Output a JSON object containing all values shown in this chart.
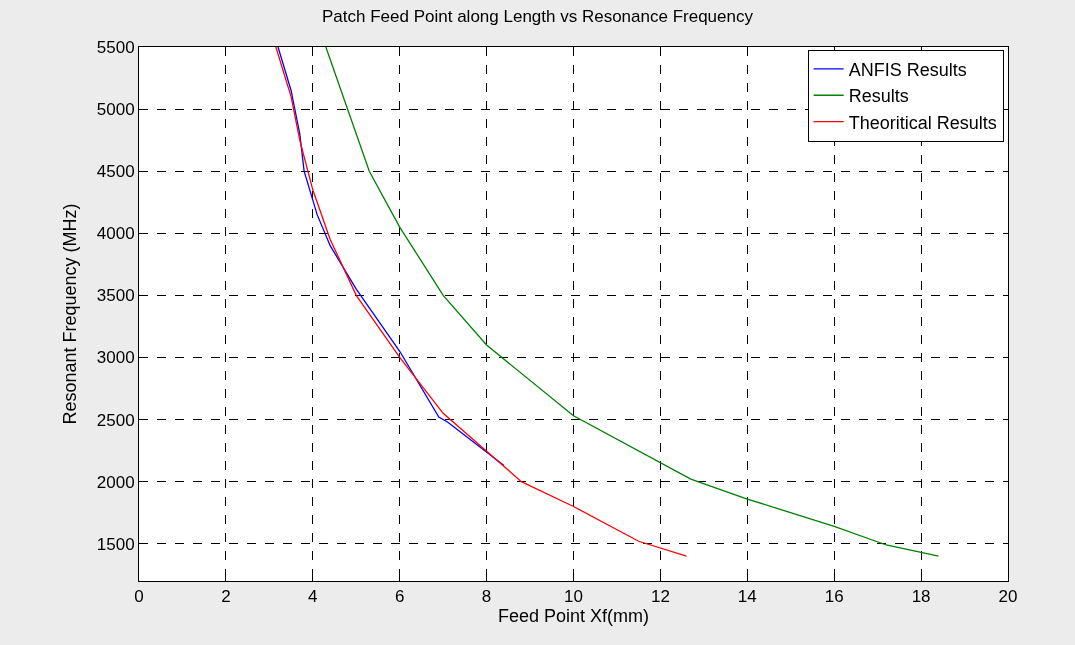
{
  "chart_data": {
    "type": "line",
    "title": "Patch Feed Point along Length vs Resonance Frequency",
    "xlabel": "Feed Point Xf(mm)",
    "ylabel": "Resonant Frequency (MHz)",
    "xlim": [
      0,
      20
    ],
    "xticks": [
      0,
      2,
      4,
      6,
      8,
      10,
      12,
      14,
      16,
      18,
      20
    ],
    "ylim": [
      1200,
      5500
    ],
    "yticks": [
      1500,
      2000,
      2500,
      3000,
      3500,
      4000,
      4500,
      5000,
      5500
    ],
    "grid": true,
    "legend": "top right",
    "marker": "none",
    "line_style": "solid",
    "series": [
      {
        "name": "ANFIS Results",
        "color": "#0000ff",
        "x": [
          3.2,
          3.5,
          3.7,
          3.8,
          4.1,
          4.4,
          5,
          6,
          6.9,
          7.1,
          8.4
        ],
        "values": [
          5500,
          5150,
          4800,
          4500,
          4150,
          3900,
          3550,
          3050,
          2520,
          2480,
          2130
        ]
      },
      {
        "name": "Results",
        "color": "#008000",
        "x": [
          4.3,
          5.3,
          6,
          7,
          8,
          10,
          12.7,
          14,
          16,
          17.2,
          18.4
        ],
        "values": [
          5500,
          4500,
          4050,
          3500,
          3100,
          2530,
          2020,
          1860,
          1640,
          1490,
          1400
        ]
      },
      {
        "name": "Theoritical Results",
        "color": "#ff0000",
        "x": [
          3.15,
          3.5,
          3.7,
          4,
          4.4,
          5,
          6,
          7,
          8.8,
          10,
          11.5,
          12.6
        ],
        "values": [
          5500,
          5100,
          4750,
          4350,
          3950,
          3500,
          3000,
          2550,
          2000,
          1800,
          1520,
          1400
        ]
      }
    ]
  }
}
